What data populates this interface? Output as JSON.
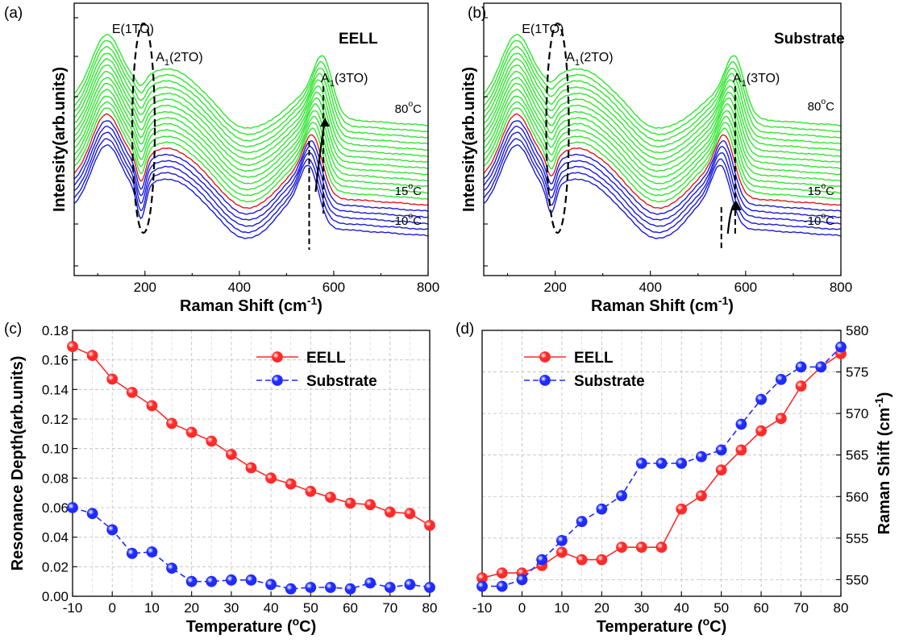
{
  "chart_data": [
    {
      "panel": "(a)",
      "type": "line",
      "title": "EELL",
      "xlabel": "Raman Shift",
      "xlabel_unit": "(cm-1)",
      "ylabel": "Intensity(arb.units)",
      "xlim": [
        50,
        800
      ],
      "xticks": [
        "200",
        "400",
        "600",
        "800"
      ],
      "peaks": [
        "E(1TO)",
        "A1(2TO)",
        "A1(3TO)"
      ],
      "temperature_labels": [
        "80oC",
        "15oC",
        "-10oC"
      ],
      "series_count": 19,
      "series_groups": [
        {
          "range": "-10 to 10 °C",
          "count": 5,
          "color": "#1a1adb"
        },
        {
          "range": "15 °C",
          "count": 1,
          "color": "#e01a1a"
        },
        {
          "range": "20 to 80 °C",
          "count": 13,
          "color": "#2ee62e"
        }
      ],
      "A1_3TO_peak_start": 548,
      "A1_3TO_peak_end": 578
    },
    {
      "panel": "(b)",
      "type": "line",
      "title": "Substrate",
      "xlabel": "Raman Shift",
      "xlabel_unit": "(cm-1)",
      "ylabel": "Intensity(arb.units)",
      "xlim": [
        50,
        800
      ],
      "xticks": [
        "200",
        "400",
        "600",
        "800"
      ],
      "peaks": [
        "E(1TO)",
        "A1(2TO)",
        "A1(3TO)"
      ],
      "temperature_labels": [
        "80oC",
        "15oC",
        "-10oC"
      ],
      "series_count": 19,
      "A1_3TO_peak_start": 549,
      "A1_3TO_peak_end": 578
    },
    {
      "panel": "(c)",
      "type": "line",
      "xlabel": "Temperature",
      "xlabel_unit": "(oC)",
      "ylabel": "Resonance Depth(arb.units)",
      "xlim": [
        -10,
        80
      ],
      "ylim": [
        0,
        0.18
      ],
      "xticks": [
        "-10",
        "0",
        "10",
        "20",
        "30",
        "40",
        "50",
        "60",
        "70",
        "80"
      ],
      "yticks": [
        "0.00",
        "0.02",
        "0.04",
        "0.06",
        "0.08",
        "0.10",
        "0.12",
        "0.14",
        "0.16",
        "0.18"
      ],
      "grid": true,
      "legend": "top-right",
      "x": [
        -10,
        -5,
        0,
        5,
        10,
        15,
        20,
        25,
        30,
        35,
        40,
        45,
        50,
        55,
        60,
        65,
        70,
        75,
        80
      ],
      "series": [
        {
          "name": "EELL",
          "color": "#ff2a2a",
          "style": "solid",
          "values": [
            0.169,
            0.163,
            0.147,
            0.138,
            0.129,
            0.117,
            0.111,
            0.105,
            0.096,
            0.087,
            0.08,
            0.076,
            0.071,
            0.067,
            0.063,
            0.062,
            0.057,
            0.056,
            0.048
          ]
        },
        {
          "name": "Substrate",
          "color": "#1f2bff",
          "style": "dashed",
          "values": [
            0.06,
            0.056,
            0.045,
            0.029,
            0.03,
            0.019,
            0.01,
            0.01,
            0.011,
            0.011,
            0.008,
            0.005,
            0.006,
            0.006,
            0.005,
            0.009,
            0.006,
            0.008,
            0.006
          ]
        }
      ]
    },
    {
      "panel": "(d)",
      "type": "line",
      "xlabel": "Temperature",
      "xlabel_unit": "(oC)",
      "ylabel": "Raman Shift",
      "ylabel_unit": "(cm-1)",
      "xlim": [
        -10,
        80
      ],
      "ylim": [
        548,
        580
      ],
      "xticks": [
        "-10",
        "0",
        "10",
        "20",
        "30",
        "40",
        "50",
        "60",
        "70",
        "80"
      ],
      "yticks": [
        "550",
        "555",
        "560",
        "565",
        "570",
        "575",
        "580"
      ],
      "grid": true,
      "legend": "top-left",
      "x": [
        -10,
        -5,
        0,
        5,
        10,
        15,
        20,
        25,
        30,
        35,
        40,
        45,
        50,
        55,
        60,
        65,
        70,
        75,
        80
      ],
      "series": [
        {
          "name": "EELL",
          "color": "#ff2a2a",
          "style": "solid",
          "values": [
            550.2,
            550.8,
            550.8,
            551.7,
            553.3,
            552.4,
            552.4,
            553.9,
            553.9,
            553.9,
            558.5,
            560.1,
            563.2,
            565.6,
            567.9,
            569.4,
            573.3,
            575.6,
            577.2
          ]
        },
        {
          "name": "Substrate",
          "color": "#1f2bff",
          "style": "dashed",
          "values": [
            549.2,
            549.2,
            550.0,
            552.4,
            554.7,
            557.0,
            558.5,
            560.1,
            564.0,
            564.0,
            564.0,
            564.8,
            565.6,
            568.7,
            571.7,
            574.1,
            575.6,
            575.6,
            578.0
          ]
        }
      ]
    }
  ]
}
